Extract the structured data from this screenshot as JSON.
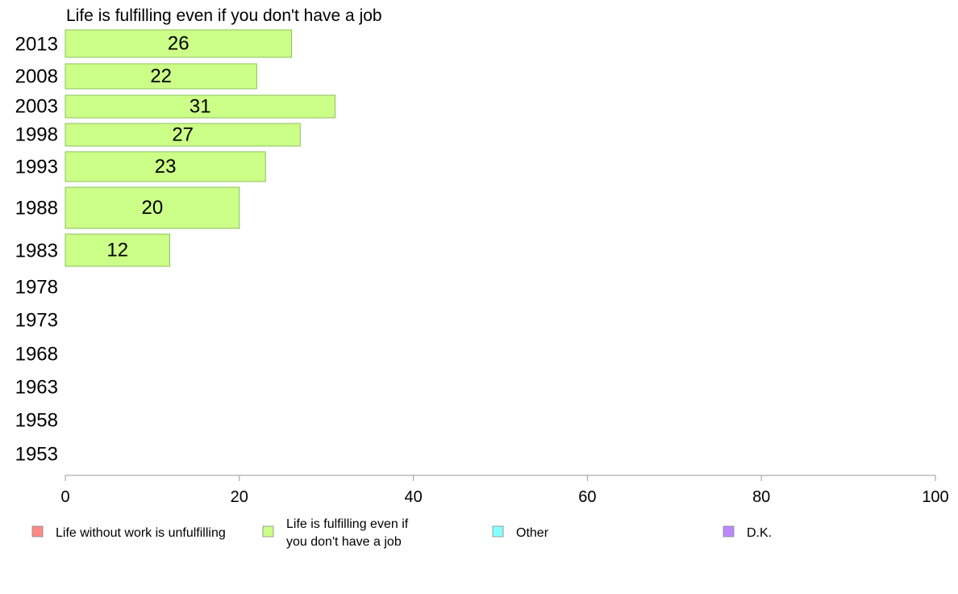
{
  "chart_data": {
    "type": "bar",
    "orientation": "horizontal",
    "title": "Life is fulfilling even if you don't have a job",
    "categories": [
      "2013",
      "2008",
      "2003",
      "1998",
      "1993",
      "1988",
      "1983",
      "1978",
      "1973",
      "1968",
      "1963",
      "1958",
      "1953"
    ],
    "series": [
      {
        "name": "Life is fulfilling even if you don't have a job",
        "color": "#ccff88",
        "values": [
          26,
          22,
          31,
          27,
          23,
          20,
          12,
          null,
          null,
          null,
          null,
          null,
          null
        ]
      }
    ],
    "xlim": [
      0,
      100
    ],
    "xticks": [
      "0",
      "20",
      "40",
      "60",
      "80",
      "100"
    ],
    "grid": false,
    "legend": {
      "position": "bottom",
      "items": [
        {
          "label": "Life without work is unfulfilling",
          "color": "#ff8888"
        },
        {
          "label": "Life is fulfilling even if you don't have a job",
          "lines": [
            "Life is fulfilling even if",
            "you don't have a job"
          ],
          "color": "#ccff88"
        },
        {
          "label": "Other",
          "color": "#88ffff"
        },
        {
          "label": "D.K.",
          "color": "#bb88ff"
        }
      ]
    }
  }
}
